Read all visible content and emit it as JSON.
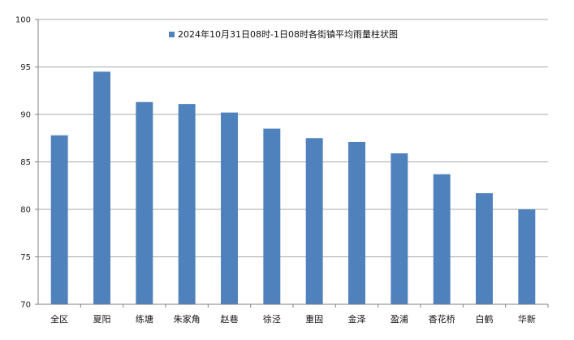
{
  "chart_data": {
    "type": "bar",
    "categories": [
      "全区",
      "夏阳",
      "练塘",
      "朱家角",
      "赵巷",
      "徐泾",
      "重固",
      "金泽",
      "盈浦",
      "香花桥",
      "白鹤",
      "华新"
    ],
    "series": [
      {
        "name": "2024年10月31日08时-1日08时各街镇平均雨量柱状图",
        "values": [
          87.8,
          94.5,
          91.3,
          91.1,
          90.2,
          88.5,
          87.5,
          87.1,
          85.9,
          83.7,
          81.7,
          80.0
        ],
        "color": "#4f81bd"
      }
    ],
    "title": "",
    "xlabel": "",
    "ylabel": "",
    "ylim": [
      70,
      100
    ],
    "yticks": [
      70,
      75,
      80,
      85,
      90,
      95,
      100
    ],
    "grid": true,
    "legend": "top-center"
  }
}
